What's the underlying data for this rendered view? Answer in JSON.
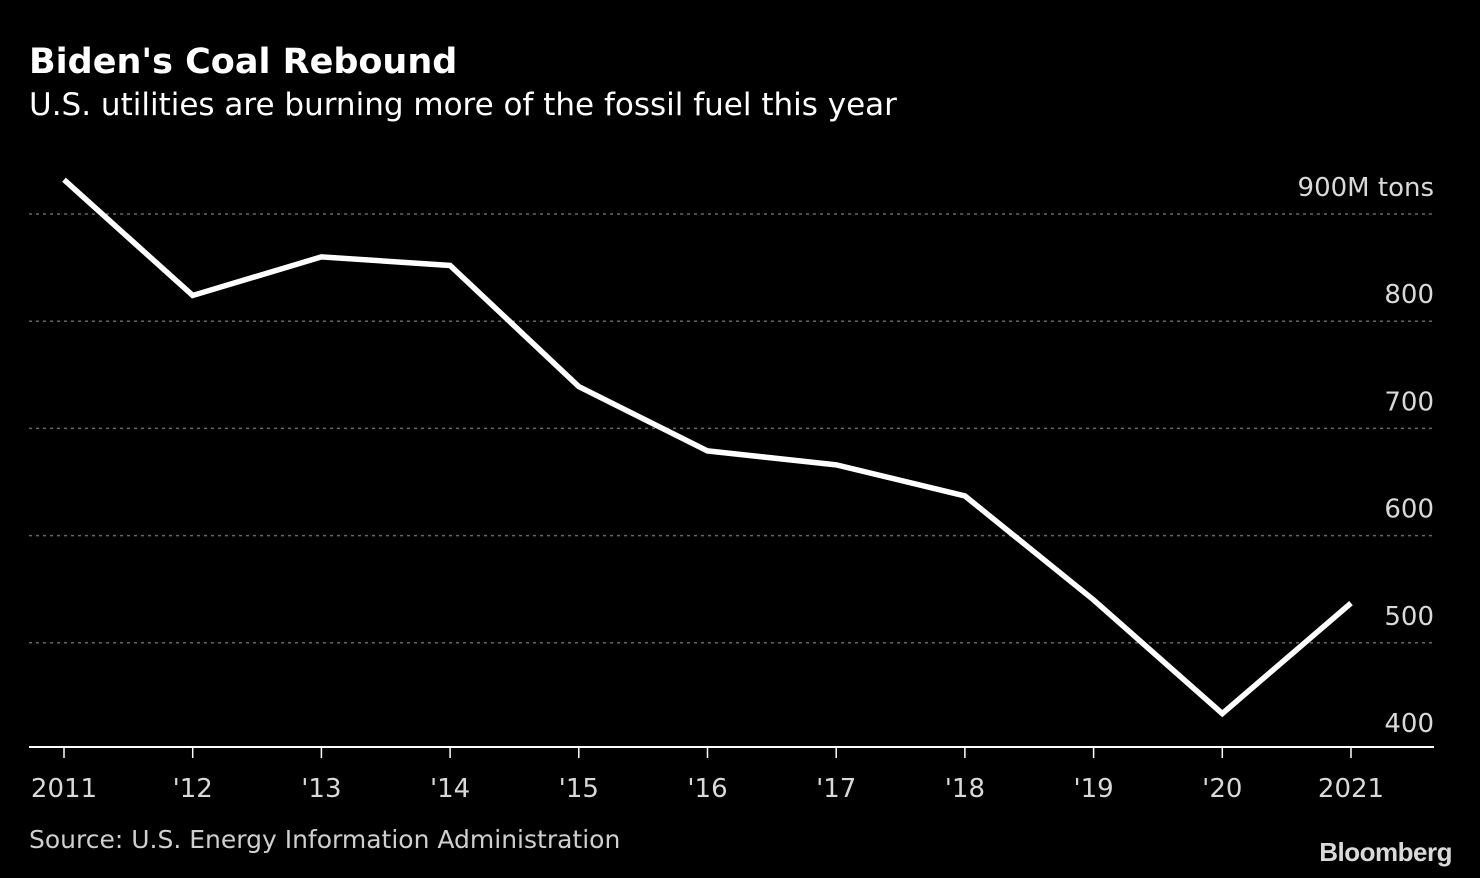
{
  "header": {
    "title": "Biden's Coal Rebound",
    "subtitle": "U.S. utilities are burning more of the fossil fuel this year"
  },
  "footer": {
    "source": "Source: U.S. Energy Information Administration",
    "brand": "Bloomberg"
  },
  "colors": {
    "background": "#000000",
    "line": "#ffffff",
    "grid": "#666666",
    "axis": "#ffffff",
    "tick_text": "#d9d9d9"
  },
  "chart_data": {
    "type": "line",
    "title": "Biden's Coal Rebound",
    "subtitle": "U.S. utilities are burning more of the fossil fuel this year",
    "x": [
      2011,
      2012,
      2013,
      2014,
      2015,
      2016,
      2017,
      2018,
      2019,
      2020,
      2021
    ],
    "x_tick_labels": [
      "2011",
      "'12",
      "'13",
      "'14",
      "'15",
      "'16",
      "'17",
      "'18",
      "'19",
      "'20",
      "2021"
    ],
    "series": [
      {
        "values": [
          932,
          824,
          860,
          852,
          739,
          679,
          666,
          637,
          540,
          434,
          537
        ]
      }
    ],
    "y_ticks": [
      400,
      500,
      600,
      700,
      800,
      900
    ],
    "y_tick_labels": [
      "400",
      "500",
      "600",
      "700",
      "800",
      "900M tons"
    ],
    "ylim": [
      365,
      970
    ],
    "xlabel": "",
    "ylabel": "",
    "grid": true,
    "y_axis_side": "right"
  }
}
